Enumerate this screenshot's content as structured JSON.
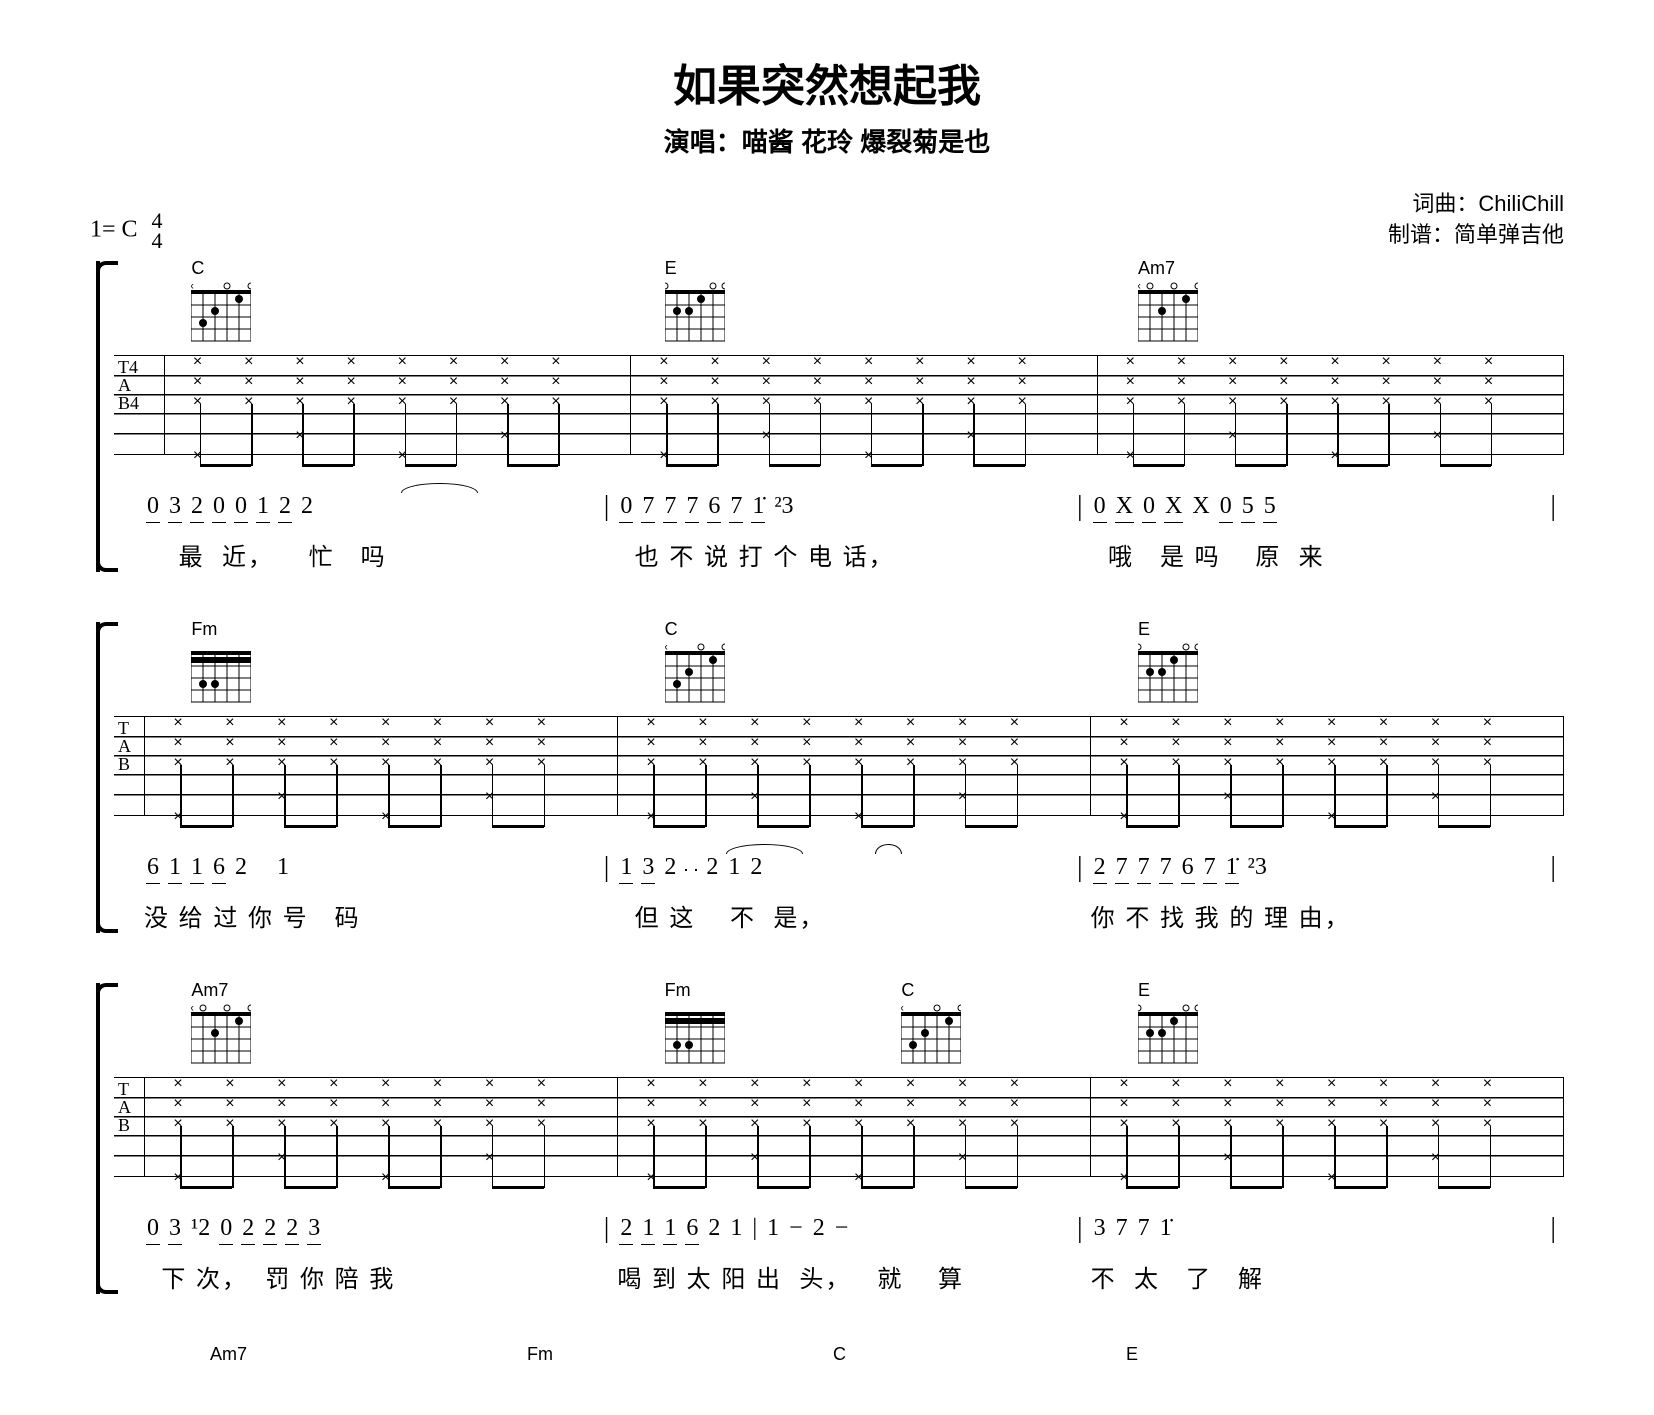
{
  "header": {
    "title": "如果突然想起我",
    "subtitle_prefix": "演唱：",
    "performers": "喵酱 花玲 爆裂菊是也",
    "key": "1= C",
    "time_num": "4",
    "time_den": "4",
    "lyricist_label": "词曲：",
    "lyricist": "ChiliChill",
    "transcriber_label": "制谱：",
    "transcriber": "简单弹吉他"
  },
  "chord_diagrams": {
    "C": {
      "label": "C",
      "frets": [
        null,
        3,
        2,
        0,
        1,
        0
      ],
      "barre": null
    },
    "E": {
      "label": "E",
      "frets": [
        0,
        2,
        2,
        1,
        0,
        0
      ],
      "barre": null
    },
    "Am7": {
      "label": "Am7",
      "frets": [
        null,
        0,
        2,
        0,
        1,
        0
      ],
      "barre": null
    },
    "Fm": {
      "label": "Fm",
      "frets": [
        1,
        3,
        3,
        1,
        1,
        1
      ],
      "barre": {
        "fret": 1,
        "from": 0,
        "to": 5
      }
    }
  },
  "systems": [
    {
      "show_tab_label": true,
      "bars": [
        {
          "chords": [
            {
              "name": "C",
              "pos": 10
            }
          ],
          "jianpu": "0 3 2 0 0 1 2 2",
          "jianpu_groups": [
            [
              0,
              1
            ],
            [
              2,
              3
            ],
            [
              4,
              5
            ],
            [
              6
            ]
          ],
          "ties": [
            [
              5,
              6
            ]
          ],
          "lyric": "    最  近，    忙   吗"
        },
        {
          "chords": [
            {
              "name": "E",
              "pos": 10
            }
          ],
          "jianpu": "0 7 7 7 6 7 1̇ ²3",
          "jianpu_groups": [
            [
              0,
              1
            ],
            [
              2,
              3
            ],
            [
              4,
              5
            ],
            [
              6
            ]
          ],
          "lyric": "  也 不 说 打 个 电 话，"
        },
        {
          "chords": [
            {
              "name": "Am7",
              "pos": 10
            }
          ],
          "jianpu": "0 X 0 X X 0 5 5",
          "jianpu_groups": [
            [
              0,
              1
            ],
            [
              2,
              3
            ],
            [
              5,
              6
            ],
            [
              7
            ]
          ],
          "lyric": "  哦   是 吗    原  来"
        }
      ]
    },
    {
      "show_tab_label": true,
      "bars": [
        {
          "chords": [
            {
              "name": "Fm",
              "pos": 10
            }
          ],
          "jianpu": "6 1 1 6 2   1",
          "jianpu_groups": [
            [
              0,
              1
            ],
            [
              2,
              3
            ]
          ],
          "ties": [],
          "lyric": "没 给 过 你 号   码"
        },
        {
          "chords": [
            {
              "name": "C",
              "pos": 10
            }
          ],
          "jianpu": "1 3 2   2 1 2",
          "jianpu_groups": [
            [
              0,
              1
            ],
            [
              3,
              4
            ]
          ],
          "ties": [
            [
              2,
              3
            ],
            [
              5,
              5
            ]
          ],
          "lyric": "  但 这    不  是，"
        },
        {
          "chords": [
            {
              "name": "E",
              "pos": 10
            }
          ],
          "jianpu": "2 7 7 7 6 7 1̇ ²3",
          "jianpu_groups": [
            [
              0,
              1
            ],
            [
              2,
              3
            ],
            [
              4,
              5
            ],
            [
              6
            ]
          ],
          "lyric": "你 不 找 我 的 理 由，"
        }
      ]
    },
    {
      "show_tab_label": true,
      "bars": [
        {
          "chords": [
            {
              "name": "Am7",
              "pos": 10
            }
          ],
          "jianpu": "0 3 ¹2 0 2 2 2 3",
          "jianpu_groups": [
            [
              0,
              1
            ],
            [
              3,
              4
            ],
            [
              5,
              6
            ],
            [
              7
            ]
          ],
          "lyric": "  下 次，  罚 你 陪 我"
        },
        {
          "chords": [
            {
              "name": "Fm",
              "pos": 10
            },
            {
              "name": "C",
              "pos": 60
            }
          ],
          "jianpu": "2 1 1 6 2 1 | 1 − 2 −",
          "jianpu_groups": [
            [
              0,
              1
            ],
            [
              2,
              3
            ]
          ],
          "lyric": "喝 到 太 阳 出  头，   就    算"
        },
        {
          "chords": [
            {
              "name": "E",
              "pos": 10
            }
          ],
          "jianpu": "3 7 7 1̇",
          "jianpu_groups": [],
          "lyric": "不  太   了   解"
        }
      ]
    }
  ],
  "bottom_chords": [
    "Am7",
    "Fm",
    "C",
    "E"
  ],
  "colors": {
    "fg": "#000000",
    "bg": "#ffffff"
  },
  "strum_pattern": {
    "beats_per_bar": 4,
    "subdivisions": 8,
    "bass_on": [
      0,
      4
    ],
    "treble_on": [
      0,
      1,
      2,
      3,
      4,
      5,
      6,
      7
    ]
  }
}
